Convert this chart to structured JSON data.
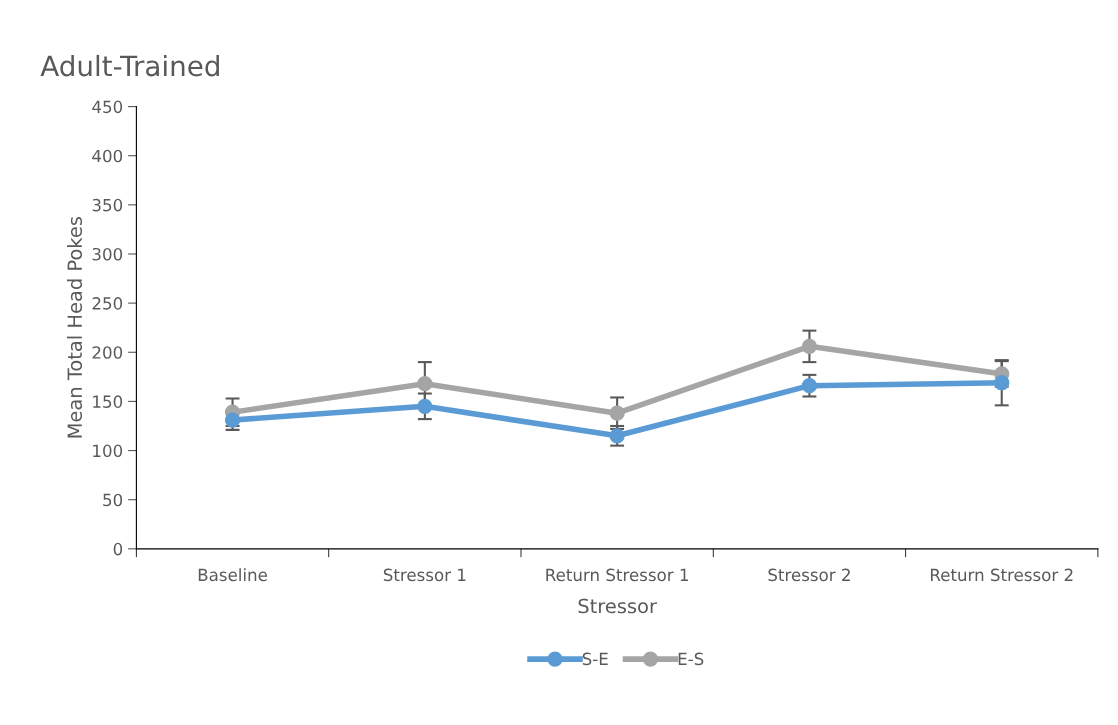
{
  "chart_data": {
    "type": "line",
    "title": "Adult-Trained",
    "xlabel": "Stressor",
    "ylabel": "Mean Total Head Pokes",
    "categories": [
      "Baseline",
      "Stressor 1",
      "Return Stressor 1",
      "Stressor 2",
      "Return Stressor 2"
    ],
    "series": [
      {
        "name": "S-E",
        "color": "#5b9bd5",
        "values": [
          131,
          145,
          115,
          166,
          169
        ],
        "errors": [
          10,
          13,
          10,
          11,
          23
        ]
      },
      {
        "name": "E-S",
        "color": "#a5a5a5",
        "values": [
          139,
          168,
          138,
          206,
          178
        ],
        "errors": [
          14,
          22,
          16,
          16,
          13
        ]
      }
    ],
    "ylim": [
      0,
      450
    ],
    "yticks": [
      0,
      50,
      100,
      150,
      200,
      250,
      300,
      350,
      400,
      450
    ],
    "marker": "circle",
    "legend": "bottom",
    "grid": false
  }
}
